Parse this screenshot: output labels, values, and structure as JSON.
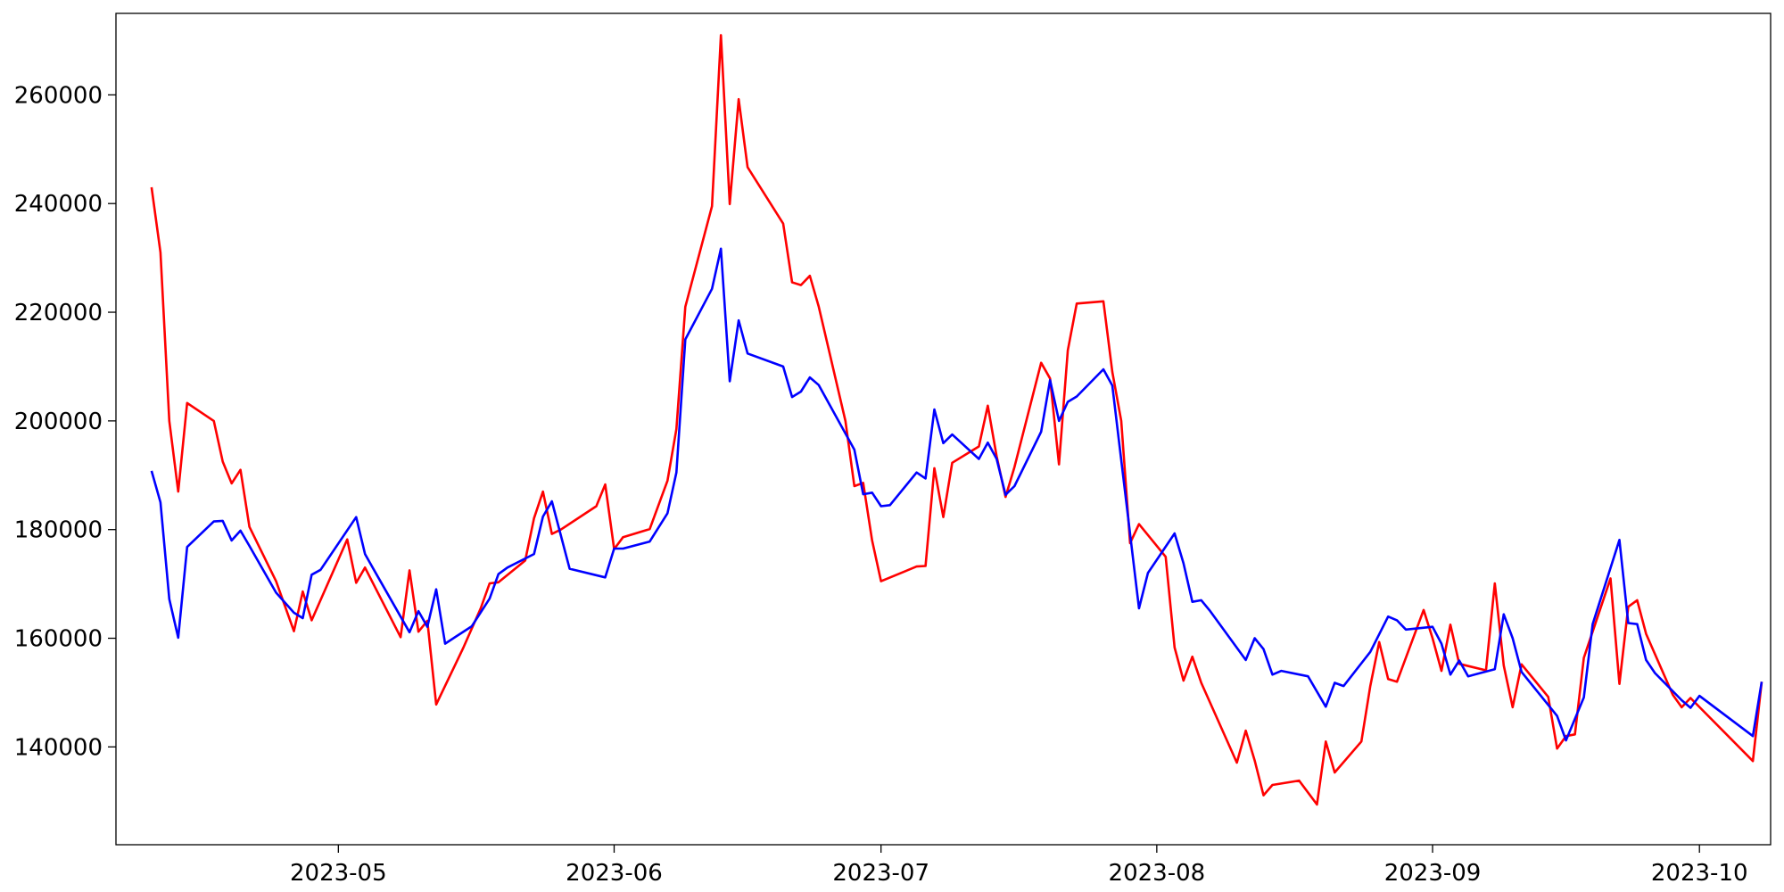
{
  "chart_data": {
    "type": "line",
    "title": "",
    "xlabel": "",
    "ylabel": "",
    "xlim": [
      "2023-04-06",
      "2023-10-09"
    ],
    "ylim": [
      122000,
      275000
    ],
    "grid": false,
    "xticks": [
      "2023-05",
      "2023-06",
      "2023-07",
      "2023-08",
      "2023-09",
      "2023-10"
    ],
    "xtick_dates": [
      "2023-05-01",
      "2023-06-01",
      "2023-07-01",
      "2023-08-01",
      "2023-09-01",
      "2023-10-01"
    ],
    "yticks": [
      "140000",
      "160000",
      "180000",
      "200000",
      "220000",
      "240000",
      "260000"
    ],
    "ytick_values": [
      140000,
      160000,
      180000,
      200000,
      220000,
      240000,
      260000
    ],
    "series": [
      {
        "color": "#ff0000",
        "points": [
          [
            "2023-04-10",
            243000
          ],
          [
            "2023-04-11",
            231000
          ],
          [
            "2023-04-12",
            200000
          ],
          [
            "2023-04-13",
            187000
          ],
          [
            "2023-04-14",
            203300
          ],
          [
            "2023-04-17",
            200000
          ],
          [
            "2023-04-18",
            192500
          ],
          [
            "2023-04-19",
            188500
          ],
          [
            "2023-04-20",
            191000
          ],
          [
            "2023-04-21",
            180500
          ],
          [
            "2023-04-24",
            170500
          ],
          [
            "2023-04-26",
            161300
          ],
          [
            "2023-04-27",
            168600
          ],
          [
            "2023-04-28",
            163300
          ],
          [
            "2023-05-02",
            178200
          ],
          [
            "2023-05-03",
            170200
          ],
          [
            "2023-05-04",
            173000
          ],
          [
            "2023-05-08",
            160200
          ],
          [
            "2023-05-09",
            172500
          ],
          [
            "2023-05-10",
            161200
          ],
          [
            "2023-05-11",
            163200
          ],
          [
            "2023-05-12",
            147800
          ],
          [
            "2023-05-15",
            158100
          ],
          [
            "2023-05-17",
            165500
          ],
          [
            "2023-05-18",
            170100
          ],
          [
            "2023-05-19",
            170300
          ],
          [
            "2023-05-22",
            174300
          ],
          [
            "2023-05-23",
            182100
          ],
          [
            "2023-05-24",
            187000
          ],
          [
            "2023-05-25",
            179200
          ],
          [
            "2023-05-26",
            180000
          ],
          [
            "2023-05-30",
            184300
          ],
          [
            "2023-05-31",
            188300
          ],
          [
            "2023-06-01",
            176400
          ],
          [
            "2023-06-02",
            178600
          ],
          [
            "2023-06-05",
            180100
          ],
          [
            "2023-06-07",
            189000
          ],
          [
            "2023-06-08",
            198500
          ],
          [
            "2023-06-09",
            221000
          ],
          [
            "2023-06-12",
            239500
          ],
          [
            "2023-06-13",
            271000
          ],
          [
            "2023-06-14",
            239900
          ],
          [
            "2023-06-15",
            259200
          ],
          [
            "2023-06-16",
            246700
          ],
          [
            "2023-06-20",
            236300
          ],
          [
            "2023-06-21",
            225500
          ],
          [
            "2023-06-22",
            225000
          ],
          [
            "2023-06-23",
            226700
          ],
          [
            "2023-06-24",
            221000
          ],
          [
            "2023-06-27",
            200000
          ],
          [
            "2023-06-28",
            188000
          ],
          [
            "2023-06-29",
            188600
          ],
          [
            "2023-06-30",
            178000
          ],
          [
            "2023-07-01",
            170500
          ],
          [
            "2023-07-05",
            173200
          ],
          [
            "2023-07-06",
            173300
          ],
          [
            "2023-07-07",
            191300
          ],
          [
            "2023-07-08",
            182300
          ],
          [
            "2023-07-09",
            192300
          ],
          [
            "2023-07-12",
            195300
          ],
          [
            "2023-07-13",
            202800
          ],
          [
            "2023-07-14",
            193500
          ],
          [
            "2023-07-15",
            186000
          ],
          [
            "2023-07-16",
            191500
          ],
          [
            "2023-07-19",
            210700
          ],
          [
            "2023-07-20",
            207800
          ],
          [
            "2023-07-21",
            192000
          ],
          [
            "2023-07-22",
            213000
          ],
          [
            "2023-07-23",
            221600
          ],
          [
            "2023-07-26",
            222000
          ],
          [
            "2023-07-27",
            209000
          ],
          [
            "2023-07-28",
            200000
          ],
          [
            "2023-07-29",
            177500
          ],
          [
            "2023-07-30",
            181000
          ],
          [
            "2023-08-02",
            175000
          ],
          [
            "2023-08-03",
            158300
          ],
          [
            "2023-08-04",
            152200
          ],
          [
            "2023-08-05",
            156600
          ],
          [
            "2023-08-06",
            151800
          ],
          [
            "2023-08-10",
            137100
          ],
          [
            "2023-08-11",
            143000
          ],
          [
            "2023-08-12",
            137500
          ],
          [
            "2023-08-13",
            131100
          ],
          [
            "2023-08-14",
            133000
          ],
          [
            "2023-08-17",
            133800
          ],
          [
            "2023-08-19",
            129400
          ],
          [
            "2023-08-20",
            141000
          ],
          [
            "2023-08-21",
            135300
          ],
          [
            "2023-08-24",
            141000
          ],
          [
            "2023-08-25",
            151200
          ],
          [
            "2023-08-26",
            159300
          ],
          [
            "2023-08-27",
            152500
          ],
          [
            "2023-08-28",
            152000
          ],
          [
            "2023-08-31",
            165200
          ],
          [
            "2023-09-01",
            160000
          ],
          [
            "2023-09-02",
            154000
          ],
          [
            "2023-09-03",
            162500
          ],
          [
            "2023-09-04",
            155300
          ],
          [
            "2023-09-07",
            154100
          ],
          [
            "2023-09-08",
            170100
          ],
          [
            "2023-09-09",
            155000
          ],
          [
            "2023-09-10",
            147300
          ],
          [
            "2023-09-11",
            155200
          ],
          [
            "2023-09-14",
            149200
          ],
          [
            "2023-09-15",
            139700
          ],
          [
            "2023-09-16",
            142000
          ],
          [
            "2023-09-17",
            142300
          ],
          [
            "2023-09-18",
            156400
          ],
          [
            "2023-09-21",
            171000
          ],
          [
            "2023-09-22",
            151600
          ],
          [
            "2023-09-23",
            165800
          ],
          [
            "2023-09-24",
            167000
          ],
          [
            "2023-09-25",
            160800
          ],
          [
            "2023-09-28",
            149600
          ],
          [
            "2023-09-29",
            147300
          ],
          [
            "2023-09-30",
            149000
          ],
          [
            "2023-10-07",
            137400
          ],
          [
            "2023-10-08",
            152000
          ]
        ]
      },
      {
        "color": "#0000ff",
        "points": [
          [
            "2023-04-10",
            190800
          ],
          [
            "2023-04-11",
            185000
          ],
          [
            "2023-04-12",
            167200
          ],
          [
            "2023-04-13",
            160100
          ],
          [
            "2023-04-14",
            176800
          ],
          [
            "2023-04-17",
            181500
          ],
          [
            "2023-04-18",
            181600
          ],
          [
            "2023-04-19",
            178000
          ],
          [
            "2023-04-20",
            179800
          ],
          [
            "2023-04-21",
            177000
          ],
          [
            "2023-04-24",
            168400
          ],
          [
            "2023-04-26",
            164700
          ],
          [
            "2023-04-27",
            163700
          ],
          [
            "2023-04-28",
            171700
          ],
          [
            "2023-04-29",
            172600
          ],
          [
            "2023-05-03",
            182300
          ],
          [
            "2023-05-04",
            175500
          ],
          [
            "2023-05-05",
            172600
          ],
          [
            "2023-05-09",
            161100
          ],
          [
            "2023-05-10",
            165000
          ],
          [
            "2023-05-11",
            162100
          ],
          [
            "2023-05-12",
            169000
          ],
          [
            "2023-05-13",
            159000
          ],
          [
            "2023-05-16",
            162200
          ],
          [
            "2023-05-18",
            167300
          ],
          [
            "2023-05-19",
            171800
          ],
          [
            "2023-05-20",
            173000
          ],
          [
            "2023-05-23",
            175500
          ],
          [
            "2023-05-24",
            182400
          ],
          [
            "2023-05-25",
            185200
          ],
          [
            "2023-05-27",
            172800
          ],
          [
            "2023-05-31",
            171200
          ],
          [
            "2023-06-01",
            176500
          ],
          [
            "2023-06-02",
            176500
          ],
          [
            "2023-06-05",
            177800
          ],
          [
            "2023-06-07",
            183000
          ],
          [
            "2023-06-08",
            190500
          ],
          [
            "2023-06-09",
            215000
          ],
          [
            "2023-06-12",
            224300
          ],
          [
            "2023-06-13",
            231700
          ],
          [
            "2023-06-14",
            207300
          ],
          [
            "2023-06-15",
            218500
          ],
          [
            "2023-06-16",
            212400
          ],
          [
            "2023-06-20",
            210000
          ],
          [
            "2023-06-21",
            204400
          ],
          [
            "2023-06-22",
            205400
          ],
          [
            "2023-06-23",
            208000
          ],
          [
            "2023-06-24",
            206600
          ],
          [
            "2023-06-28",
            194700
          ],
          [
            "2023-06-29",
            186500
          ],
          [
            "2023-06-30",
            186800
          ],
          [
            "2023-07-01",
            184300
          ],
          [
            "2023-07-02",
            184500
          ],
          [
            "2023-07-05",
            190500
          ],
          [
            "2023-07-06",
            189400
          ],
          [
            "2023-07-07",
            202100
          ],
          [
            "2023-07-08",
            195900
          ],
          [
            "2023-07-09",
            197500
          ],
          [
            "2023-07-12",
            193000
          ],
          [
            "2023-07-13",
            196000
          ],
          [
            "2023-07-14",
            193000
          ],
          [
            "2023-07-15",
            186400
          ],
          [
            "2023-07-16",
            188000
          ],
          [
            "2023-07-19",
            198000
          ],
          [
            "2023-07-20",
            207500
          ],
          [
            "2023-07-21",
            200000
          ],
          [
            "2023-07-22",
            203500
          ],
          [
            "2023-07-23",
            204500
          ],
          [
            "2023-07-26",
            209500
          ],
          [
            "2023-07-27",
            206500
          ],
          [
            "2023-07-30",
            165500
          ],
          [
            "2023-07-31",
            172000
          ],
          [
            "2023-08-03",
            179300
          ],
          [
            "2023-08-04",
            173800
          ],
          [
            "2023-08-05",
            166700
          ],
          [
            "2023-08-06",
            167000
          ],
          [
            "2023-08-07",
            165000
          ],
          [
            "2023-08-11",
            156000
          ],
          [
            "2023-08-12",
            160000
          ],
          [
            "2023-08-13",
            158000
          ],
          [
            "2023-08-14",
            153300
          ],
          [
            "2023-08-15",
            154000
          ],
          [
            "2023-08-18",
            153000
          ],
          [
            "2023-08-20",
            147400
          ],
          [
            "2023-08-21",
            151800
          ],
          [
            "2023-08-22",
            151200
          ],
          [
            "2023-08-25",
            157500
          ],
          [
            "2023-08-27",
            164000
          ],
          [
            "2023-08-28",
            163300
          ],
          [
            "2023-08-29",
            161600
          ],
          [
            "2023-09-01",
            162100
          ],
          [
            "2023-09-02",
            159000
          ],
          [
            "2023-09-03",
            153300
          ],
          [
            "2023-09-04",
            155900
          ],
          [
            "2023-09-05",
            153000
          ],
          [
            "2023-09-08",
            154300
          ],
          [
            "2023-09-09",
            164400
          ],
          [
            "2023-09-10",
            160000
          ],
          [
            "2023-09-11",
            153800
          ],
          [
            "2023-09-15",
            145700
          ],
          [
            "2023-09-16",
            141200
          ],
          [
            "2023-09-18",
            149100
          ],
          [
            "2023-09-19",
            162600
          ],
          [
            "2023-09-22",
            178100
          ],
          [
            "2023-09-23",
            162800
          ],
          [
            "2023-09-24",
            162600
          ],
          [
            "2023-09-25",
            156000
          ],
          [
            "2023-09-26",
            153600
          ],
          [
            "2023-09-29",
            148600
          ],
          [
            "2023-09-30",
            147200
          ],
          [
            "2023-10-01",
            149400
          ],
          [
            "2023-10-07",
            142000
          ],
          [
            "2023-10-08",
            152000
          ]
        ]
      }
    ]
  }
}
